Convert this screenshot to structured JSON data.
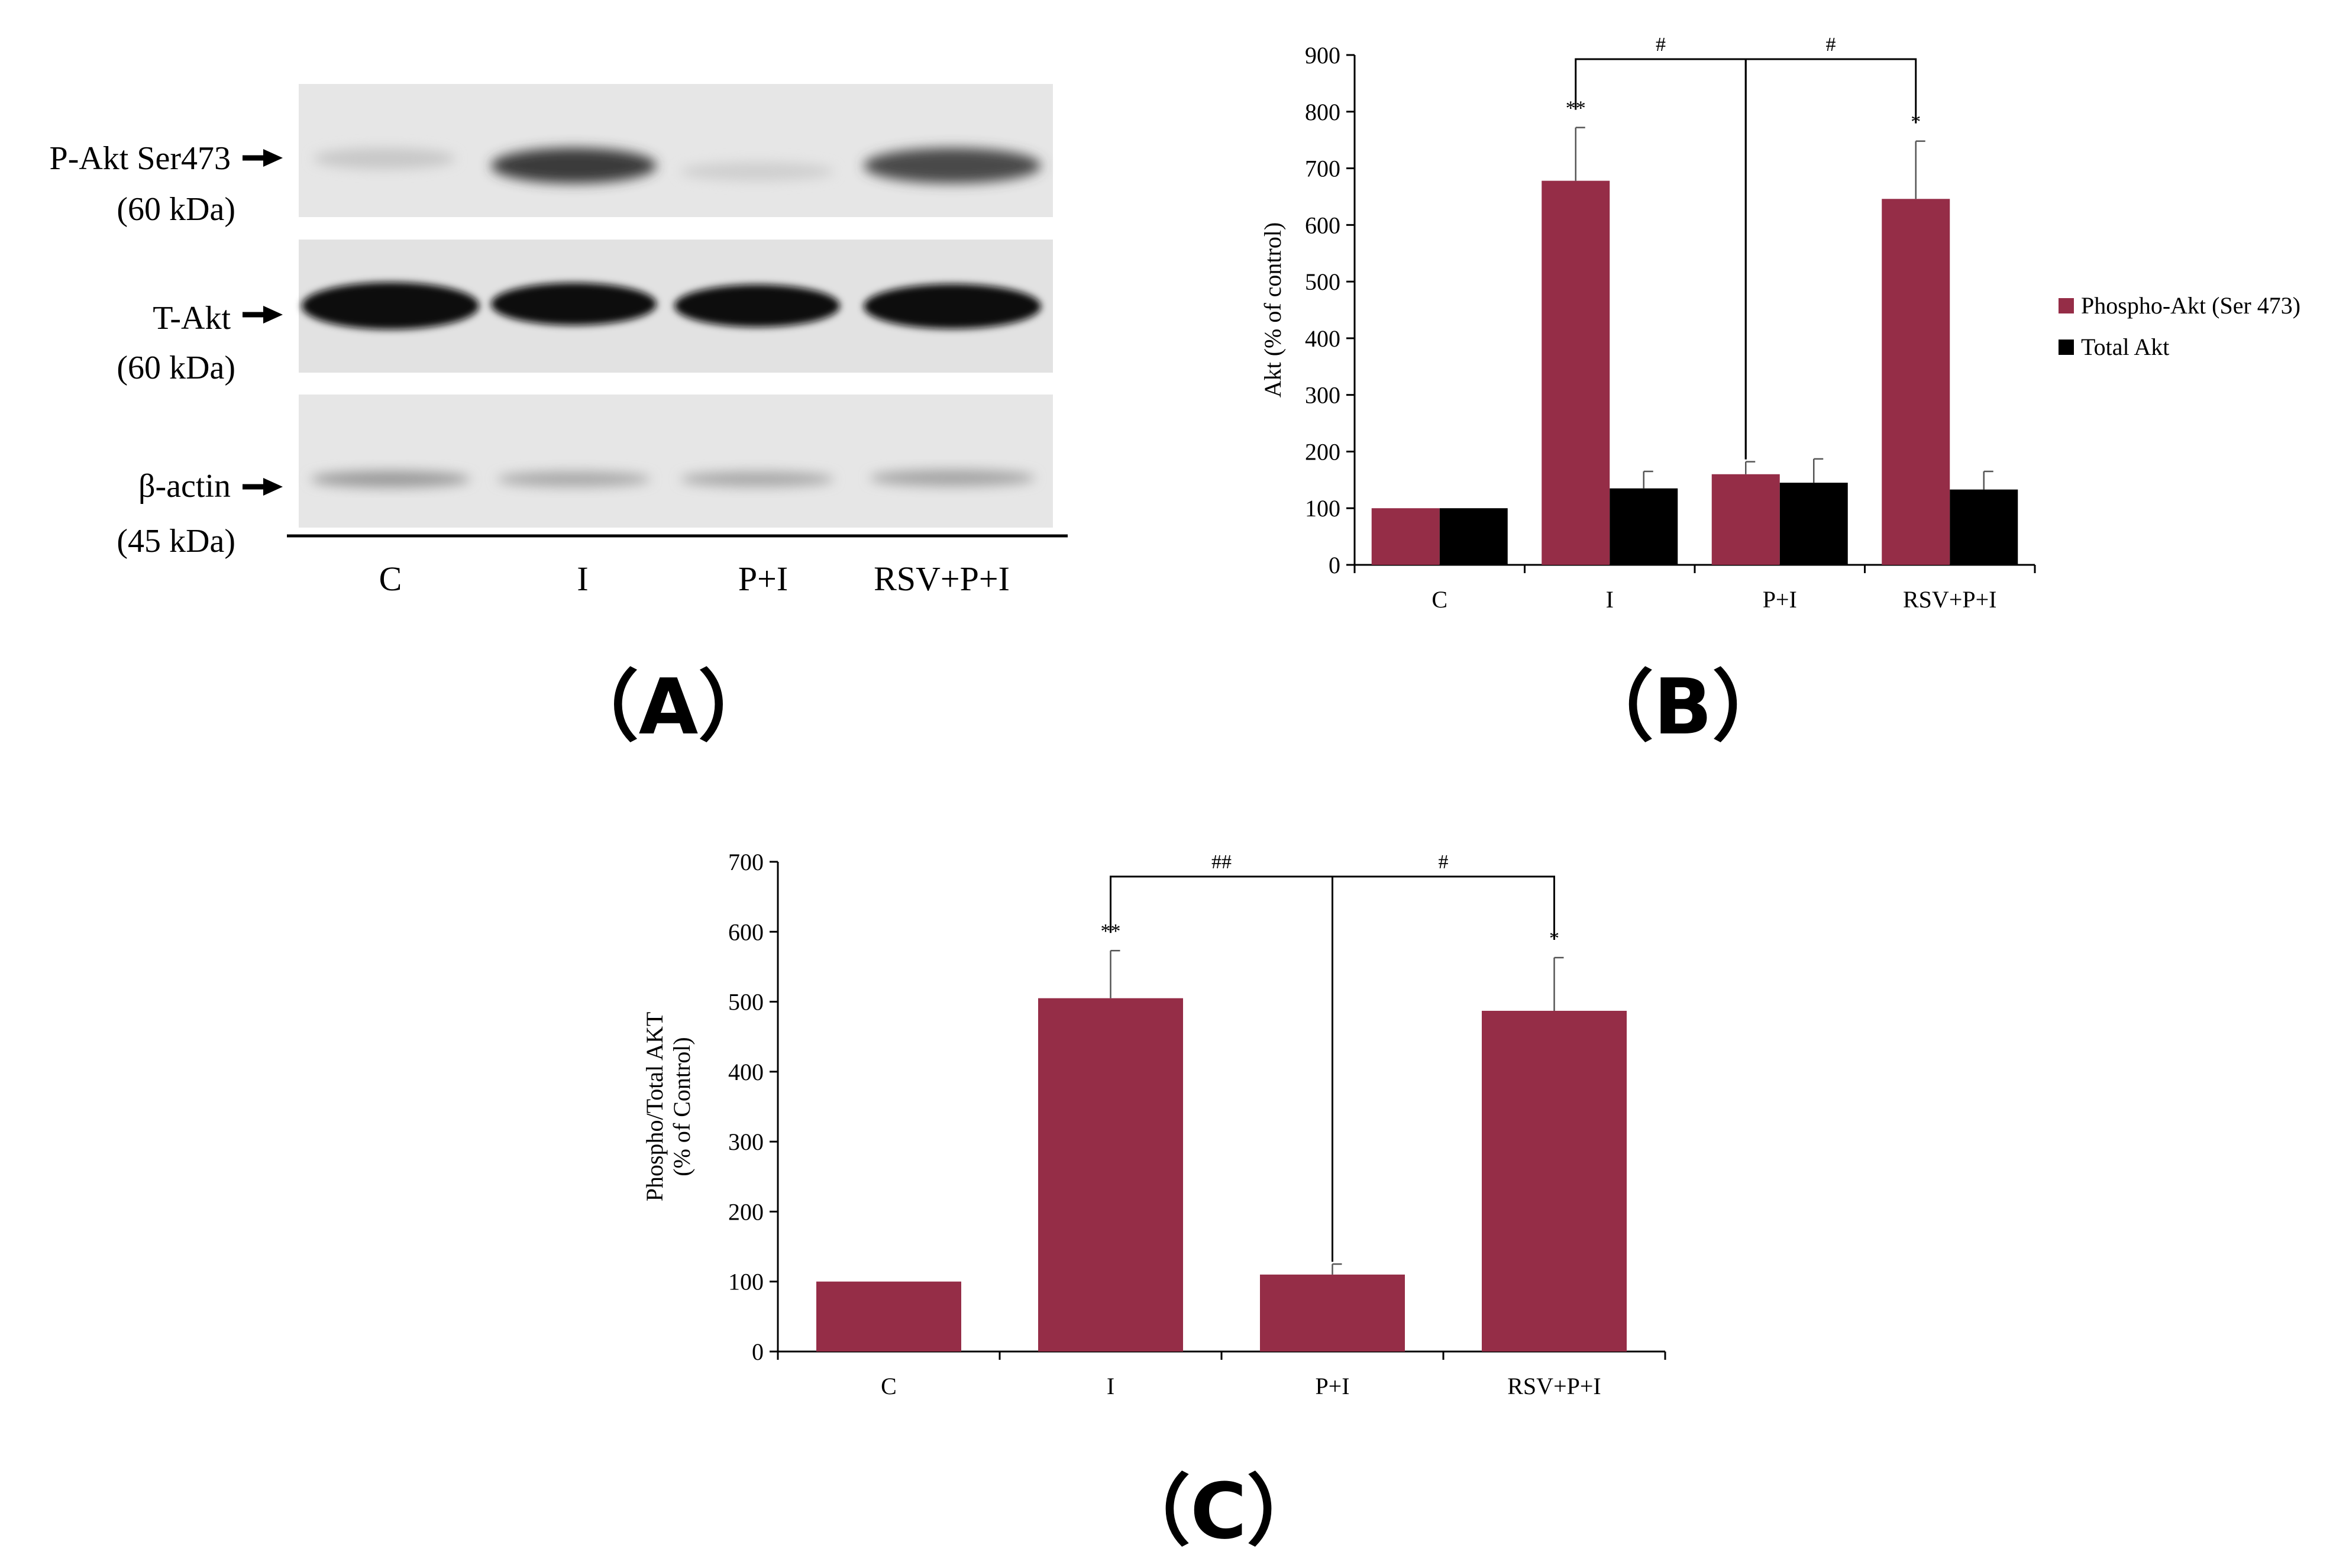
{
  "panels": {
    "a": "（A）",
    "b": "（B）",
    "c": "（C）"
  },
  "blot": {
    "rows": [
      {
        "label": "P-Akt Ser473",
        "size": "(60 kDa)"
      },
      {
        "label": "T-Akt",
        "size": "(60 kDa)"
      },
      {
        "label": "β-actin",
        "size": "(45 kDa)"
      }
    ],
    "lanes": [
      "C",
      "I",
      "P+I",
      "RSV+P+I"
    ]
  },
  "colors": {
    "phospho": "#952d47",
    "total": "#000000"
  },
  "chart_data": [
    {
      "type": "bar",
      "panel": "B",
      "categories": [
        "C",
        "I",
        "P+I",
        "RSV+P+I"
      ],
      "series": [
        {
          "name": "Phospho-Akt (Ser 473)",
          "values": [
            100,
            678,
            160,
            646
          ],
          "errors": [
            0,
            94,
            22,
            102
          ],
          "color": "#952d47"
        },
        {
          "name": "Total Akt",
          "values": [
            100,
            135,
            145,
            133
          ],
          "errors": [
            0,
            30,
            42,
            32
          ],
          "color": "#000000"
        }
      ],
      "ylabel": "Akt (% of control)",
      "ylim": [
        0,
        900
      ],
      "yticks": [
        "0",
        "100",
        "200",
        "300",
        "400",
        "500",
        "600",
        "700",
        "800",
        "900"
      ],
      "legend_position": "right",
      "grid": false,
      "annotations": [
        {
          "category": "I",
          "text": "**"
        },
        {
          "category": "RSV+P+I",
          "text": "*"
        }
      ],
      "brackets": [
        {
          "from": "I",
          "to": "P+I",
          "text": "#"
        },
        {
          "from": "P+I",
          "to": "RSV+P+I",
          "text": "#"
        }
      ]
    },
    {
      "type": "bar",
      "panel": "C",
      "categories": [
        "C",
        "I",
        "P+I",
        "RSV+P+I"
      ],
      "series": [
        {
          "values": [
            100,
            505,
            110,
            487
          ],
          "errors": [
            0,
            68,
            15,
            76
          ],
          "color": "#952d47"
        }
      ],
      "ylabel": [
        "Phospho/Total AKT",
        "(% of Control)"
      ],
      "ylim": [
        0,
        700
      ],
      "yticks": [
        "0",
        "100",
        "200",
        "300",
        "400",
        "500",
        "600",
        "700"
      ],
      "grid": false,
      "annotations": [
        {
          "category": "I",
          "text": "**"
        },
        {
          "category": "RSV+P+I",
          "text": "*"
        }
      ],
      "brackets": [
        {
          "from": "I",
          "to": "P+I",
          "text": "##"
        },
        {
          "from": "P+I",
          "to": "RSV+P+I",
          "text": "#"
        }
      ]
    }
  ]
}
